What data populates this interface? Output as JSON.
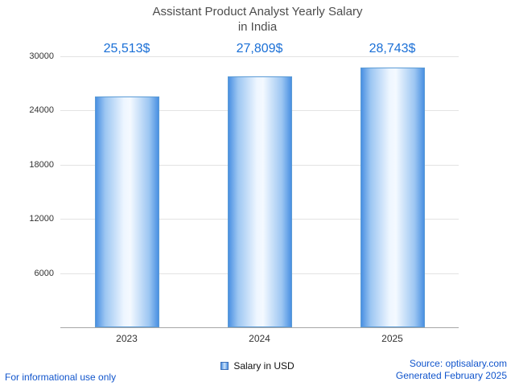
{
  "title": {
    "line1": "Assistant Product Analyst Yearly Salary",
    "line2": "in India"
  },
  "chart_data": {
    "type": "bar",
    "categories": [
      "2023",
      "2024",
      "2025"
    ],
    "values": [
      25513,
      27809,
      28743
    ],
    "value_labels": [
      "25,513$",
      "27,809$",
      "28,743$"
    ],
    "yticks": [
      30000,
      24000,
      18000,
      12000,
      6000
    ],
    "ylim": [
      0,
      30000
    ],
    "grid": "horizontal",
    "legend_position": "bottom-center",
    "bar_color": "#4a90e2",
    "value_label_color": "#1a6fd6"
  },
  "legend": {
    "label": "Salary in USD",
    "swatch_icon": "blue-square-icon"
  },
  "footer": {
    "left_note": "For informational use only",
    "source": "Source: optisalary.com",
    "generated": "Generated February 2025"
  }
}
